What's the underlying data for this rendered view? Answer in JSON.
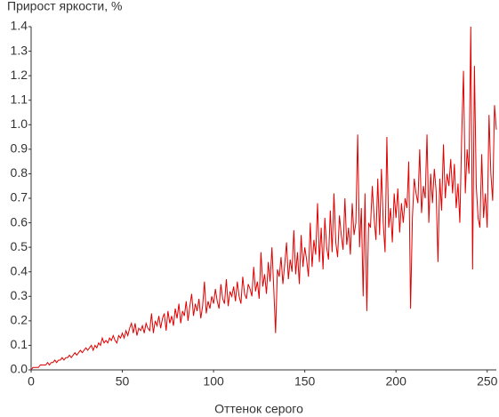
{
  "chart_data": {
    "type": "line",
    "y_label": "Прирост яркости, %",
    "x_label": "Оттенок серого",
    "color": "#e00000",
    "xlim": [
      0,
      255
    ],
    "ylim": [
      0,
      1.4
    ],
    "xticks": [
      0,
      50,
      100,
      150,
      200,
      250
    ],
    "yticks": [
      {
        "value": 0,
        "label": "0.0"
      },
      0.1,
      0.2,
      0.3,
      0.4,
      0.5,
      0.6,
      0.7,
      0.8,
      0.9,
      {
        "value": 1,
        "label": "1.0"
      },
      1.1,
      1.2,
      1.3,
      1.4
    ],
    "x": [
      0,
      1,
      2,
      3,
      4,
      5,
      6,
      7,
      8,
      9,
      10,
      11,
      12,
      13,
      14,
      15,
      16,
      17,
      18,
      19,
      20,
      21,
      22,
      23,
      24,
      25,
      26,
      27,
      28,
      29,
      30,
      31,
      32,
      33,
      34,
      35,
      36,
      37,
      38,
      39,
      40,
      41,
      42,
      43,
      44,
      45,
      46,
      47,
      48,
      49,
      50,
      51,
      52,
      53,
      54,
      55,
      56,
      57,
      58,
      59,
      60,
      61,
      62,
      63,
      64,
      65,
      66,
      67,
      68,
      69,
      70,
      71,
      72,
      73,
      74,
      75,
      76,
      77,
      78,
      79,
      80,
      81,
      82,
      83,
      84,
      85,
      86,
      87,
      88,
      89,
      90,
      91,
      92,
      93,
      94,
      95,
      96,
      97,
      98,
      99,
      100,
      101,
      102,
      103,
      104,
      105,
      106,
      107,
      108,
      109,
      110,
      111,
      112,
      113,
      114,
      115,
      116,
      117,
      118,
      119,
      120,
      121,
      122,
      123,
      124,
      125,
      126,
      127,
      128,
      129,
      130,
      131,
      132,
      133,
      134,
      135,
      136,
      137,
      138,
      139,
      140,
      141,
      142,
      143,
      144,
      145,
      146,
      147,
      148,
      149,
      150,
      151,
      152,
      153,
      154,
      155,
      156,
      157,
      158,
      159,
      160,
      161,
      162,
      163,
      164,
      165,
      166,
      167,
      168,
      169,
      170,
      171,
      172,
      173,
      174,
      175,
      176,
      177,
      178,
      179,
      180,
      181,
      182,
      183,
      184,
      185,
      186,
      187,
      188,
      189,
      190,
      191,
      192,
      193,
      194,
      195,
      196,
      197,
      198,
      199,
      200,
      201,
      202,
      203,
      204,
      205,
      206,
      207,
      208,
      209,
      210,
      211,
      212,
      213,
      214,
      215,
      216,
      217,
      218,
      219,
      220,
      221,
      222,
      223,
      224,
      225,
      226,
      227,
      228,
      229,
      230,
      231,
      232,
      233,
      234,
      235,
      236,
      237,
      238,
      239,
      240,
      241,
      242,
      243,
      244,
      245,
      246,
      247,
      248,
      249,
      250,
      251,
      252,
      253,
      254,
      255
    ],
    "values": [
      0,
      0.01,
      0.01,
      0.01,
      0.01,
      0.02,
      0.02,
      0.02,
      0.02,
      0.03,
      0.02,
      0.03,
      0.03,
      0.04,
      0.03,
      0.04,
      0.04,
      0.05,
      0.04,
      0.05,
      0.05,
      0.06,
      0.05,
      0.06,
      0.07,
      0.06,
      0.07,
      0.08,
      0.07,
      0.08,
      0.09,
      0.08,
      0.09,
      0.1,
      0.08,
      0.1,
      0.09,
      0.11,
      0.1,
      0.13,
      0.11,
      0.12,
      0.11,
      0.13,
      0.12,
      0.14,
      0.12,
      0.11,
      0.14,
      0.13,
      0.15,
      0.13,
      0.16,
      0.14,
      0.17,
      0.19,
      0.15,
      0.19,
      0.14,
      0.17,
      0.16,
      0.18,
      0.15,
      0.19,
      0.17,
      0.16,
      0.23,
      0.15,
      0.2,
      0.18,
      0.22,
      0.17,
      0.21,
      0.23,
      0.16,
      0.24,
      0.19,
      0.22,
      0.18,
      0.25,
      0.21,
      0.27,
      0.19,
      0.24,
      0.22,
      0.28,
      0.2,
      0.26,
      0.31,
      0.22,
      0.27,
      0.24,
      0.29,
      0.21,
      0.26,
      0.36,
      0.23,
      0.28,
      0.25,
      0.3,
      0.27,
      0.33,
      0.28,
      0.25,
      0.35,
      0.29,
      0.27,
      0.37,
      0.26,
      0.32,
      0.3,
      0.34,
      0.28,
      0.36,
      0.3,
      0.27,
      0.38,
      0.31,
      0.29,
      0.35,
      0.33,
      0.3,
      0.42,
      0.32,
      0.36,
      0.29,
      0.48,
      0.34,
      0.39,
      0.31,
      0.44,
      0.36,
      0.5,
      0.33,
      0.15,
      0.41,
      0.38,
      0.46,
      0.35,
      0.43,
      0.52,
      0.37,
      0.45,
      0.4,
      0.57,
      0.39,
      0.48,
      0.35,
      0.55,
      0.42,
      0.5,
      0.45,
      0.38,
      0.6,
      0.42,
      0.53,
      0.47,
      0.68,
      0.44,
      0.58,
      0.41,
      0.62,
      0.5,
      0.45,
      0.65,
      0.48,
      0.72,
      0.52,
      0.46,
      0.63,
      0.55,
      0.49,
      0.7,
      0.51,
      0.58,
      0.47,
      0.68,
      0.55,
      0.6,
      0.96,
      0.5,
      0.66,
      0.3,
      0.72,
      0.24,
      0.6,
      0.58,
      0.75,
      0.62,
      0.53,
      0.78,
      0.55,
      0.82,
      0.6,
      0.48,
      0.95,
      0.58,
      0.66,
      0.52,
      0.72,
      0.62,
      0.74,
      0.56,
      0.68,
      0.6,
      0.7,
      0.66,
      0.85,
      0.25,
      0.62,
      0.78,
      0.72,
      0.68,
      0.9,
      0.64,
      0.75,
      0.7,
      0.96,
      0.6,
      0.8,
      0.68,
      0.82,
      0.73,
      0.44,
      0.78,
      0.65,
      0.92,
      0.7,
      0.8,
      0.75,
      0.86,
      0.72,
      0.84,
      0.66,
      0.76,
      0.6,
      0.95,
      1.22,
      0.72,
      0.9,
      0.8,
      1.4,
      0.41,
      1.24,
      0.75,
      0.62,
      0.58,
      0.88,
      0.62,
      0.72,
      0.58,
      1.04,
      0.8,
      0.69,
      1.08,
      0.98
    ]
  }
}
